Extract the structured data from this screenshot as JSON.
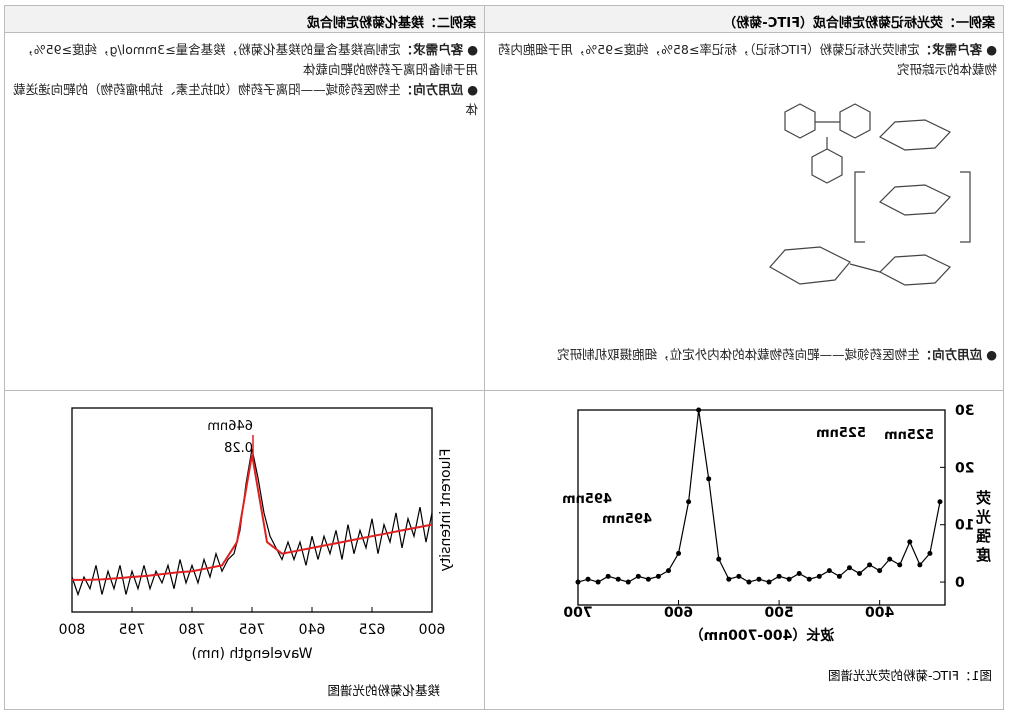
{
  "table": {
    "headers": [
      "案例一：荧光标记菊粉定制合成（FITC-菊粉）",
      "案例二：羧基化菊粉定制合成"
    ],
    "cases": [
      {
        "requirement_label": "客户需求：",
        "requirement": "定制荧光标记菊粉（FITC标记），标记率≥85%，纯度≥95%，用于细胞内药物载体的示踪研究",
        "application_label": "应用方向：",
        "application": "生物医药领域——靶向药物载体的体内外定位，细胞摄取机制研究"
      },
      {
        "requirement_label": "客户需求：",
        "requirement": "定制高羧基含量的羧基化菊粉，羧基含量≥3mmol/g，纯度≥95%，用于制备阳离子药物的靶向载体",
        "application_label": "应用方向：",
        "application": "生物医药领域——阳离子药物（如抗生素、抗肿瘤药物）的靶向递送载体"
      }
    ]
  },
  "chart_data": [
    {
      "type": "line",
      "caption": "图1：FITC-菊粉的荧光光谱图",
      "x_label": "波长（400-700nm）",
      "y_label": "荧光强度",
      "x": [
        340,
        350,
        360,
        370,
        380,
        390,
        400,
        410,
        420,
        430,
        440,
        450,
        460,
        470,
        480,
        490,
        500,
        510,
        520,
        530,
        540,
        550,
        560,
        570,
        580,
        590,
        600,
        610,
        620,
        630,
        640,
        650,
        660,
        670,
        680,
        690,
        700
      ],
      "series": [
        {
          "color": "#000000",
          "values": [
            14,
            5,
            3,
            7,
            3,
            4,
            2,
            3,
            1.5,
            2.5,
            1,
            2,
            1,
            0.5,
            1.5,
            0.5,
            1,
            0,
            0.5,
            0,
            1,
            0.5,
            4,
            18,
            30,
            14,
            5,
            2,
            1,
            0.5,
            1,
            0,
            0.5,
            1,
            0,
            0.5,
            0
          ]
        }
      ],
      "xlim": [
        335,
        700
      ],
      "ylim": [
        -4,
        30
      ],
      "xticks": [
        400,
        500,
        600,
        700
      ],
      "yticks": [
        0,
        10,
        20,
        30
      ],
      "annotations": [
        "525nm",
        "525nm",
        "495nm",
        "495nm"
      ]
    },
    {
      "type": "line",
      "caption": "羧基化菊粉的光谱图",
      "x_label": "Wavelength (nm)",
      "y_label": "Fluorent intensity",
      "series": [
        {
          "color": "#000000",
          "x": [
            0,
            0.1,
            0.2,
            0.3,
            0.4,
            0.5,
            0.6,
            0.7,
            0.8,
            0.9,
            1,
            1.1,
            1.2,
            1.3,
            1.4,
            1.5,
            1.6,
            1.7,
            1.8,
            1.9,
            2,
            2.1,
            2.2,
            2.3,
            2.4,
            2.5,
            2.6,
            2.7,
            2.8,
            2.9,
            3,
            3.1,
            3.2,
            3.3,
            3.4,
            3.5,
            3.6,
            3.7,
            3.8,
            3.9,
            4,
            4.1,
            4.2,
            4.3,
            4.4,
            4.5,
            4.6,
            4.7,
            4.8,
            4.9,
            5,
            5.1,
            5.2,
            5.3,
            5.4,
            5.5,
            5.6,
            5.7,
            5.8,
            5.9,
            6
          ],
          "values": [
            0.17,
            0.12,
            0.18,
            0.13,
            0.16,
            0.11,
            0.17,
            0.12,
            0.15,
            0.1,
            0.16,
            0.11,
            0.14,
            0.1,
            0.15,
            0.09,
            0.14,
            0.1,
            0.13,
            0.09,
            0.13,
            0.08,
            0.12,
            0.09,
            0.12,
            0.09,
            0.11,
            0.13,
            0.17,
            0.23,
            0.28,
            0.22,
            0.14,
            0.1,
            0.09,
            0.07,
            0.1,
            0.06,
            0.09,
            0.05,
            0.08,
            0.05,
            0.09,
            0.04,
            0.08,
            0.05,
            0.07,
            0.04,
            0.08,
            0.04,
            0.07,
            0.03,
            0.08,
            0.04,
            0.07,
            0.03,
            0.08,
            0.04,
            0.06,
            0.03,
            0.06
          ]
        },
        {
          "color": "#e02020",
          "x": [
            0,
            0.25,
            0.5,
            0.75,
            1,
            1.25,
            1.5,
            1.75,
            2,
            2.25,
            2.5,
            2.75,
            3,
            3.25,
            3.5,
            3.75,
            4,
            4.25,
            4.5,
            4.75,
            5,
            5.25,
            5.5,
            5.75,
            6
          ],
          "values": [
            0.15,
            0.145,
            0.14,
            0.135,
            0.13,
            0.125,
            0.12,
            0.115,
            0.11,
            0.105,
            0.1,
            0.12,
            0.27,
            0.12,
            0.08,
            0.075,
            0.07,
            0.068,
            0.065,
            0.062,
            0.06,
            0.058,
            0.056,
            0.055,
            0.055
          ]
        }
      ],
      "xlim": [
        0,
        6
      ],
      "ylim": [
        0,
        0.35
      ],
      "xticks": [
        {
          "value": 0,
          "label": "600"
        },
        {
          "value": 1,
          "label": "625"
        },
        {
          "value": 2,
          "label": "640"
        },
        {
          "value": 3,
          "label": "765"
        },
        {
          "value": 4,
          "label": "780"
        },
        {
          "value": 5,
          "label": "795"
        },
        {
          "value": 6,
          "label": "800"
        }
      ],
      "annotations": [
        "646nm",
        "0.28"
      ]
    }
  ]
}
